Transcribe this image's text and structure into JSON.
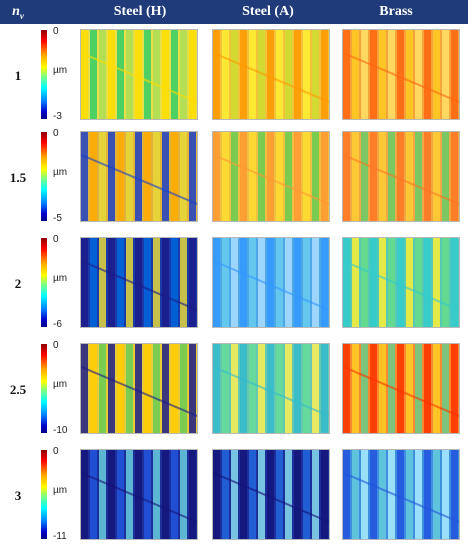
{
  "header": {
    "nv_symbol": "n",
    "nv_sub": "v",
    "columns": [
      "Steel (H)",
      "Steel (A)",
      "Brass"
    ]
  },
  "colors": {
    "header_bg": "#1f3b79",
    "header_text": "#ffffff"
  },
  "rows": [
    {
      "label": "1",
      "scale_top": "0",
      "scale_unit": "µm",
      "scale_bottom": "-3"
    },
    {
      "label": "1.5",
      "scale_top": "0",
      "scale_unit": "µm",
      "scale_bottom": "-5"
    },
    {
      "label": "2",
      "scale_top": "0",
      "scale_unit": "µm",
      "scale_bottom": "-6"
    },
    {
      "label": "2.5",
      "scale_top": "0",
      "scale_unit": "µm",
      "scale_bottom": "-10"
    },
    {
      "label": "3",
      "scale_top": "0",
      "scale_unit": "µm",
      "scale_bottom": "-11"
    }
  ],
  "panels": [
    [
      {
        "stripe": [
          "#ffdd00",
          "#33cc66",
          "#aadd55"
        ],
        "bg": "#e8e04a"
      },
      {
        "stripe": [
          "#ff9900",
          "#ffee33",
          "#ccdd33"
        ],
        "bg": "#f2c23a"
      },
      {
        "stripe": [
          "#ff6611",
          "#ffcc22",
          "#ffe266"
        ],
        "bg": "#f7a23a"
      }
    ],
    [
      {
        "stripe": [
          "#1a3fc8",
          "#ffaa00",
          "#e6d83a"
        ],
        "bg": "#e0b43a"
      },
      {
        "stripe": [
          "#ff9933",
          "#ffdd33",
          "#66cc55"
        ],
        "bg": "#f0c040"
      },
      {
        "stripe": [
          "#ff7722",
          "#ffcc33",
          "#66cc66"
        ],
        "bg": "#f0a845"
      }
    ],
    [
      {
        "stripe": [
          "#1c1c8a",
          "#0066dd",
          "#e6d83a"
        ],
        "bg": "#1a3aa8"
      },
      {
        "stripe": [
          "#3399ff",
          "#66ccee",
          "#aaddff"
        ],
        "bg": "#4fa8e6"
      },
      {
        "stripe": [
          "#33cccc",
          "#ffee33",
          "#66dd88"
        ],
        "bg": "#55c8b8"
      }
    ],
    [
      {
        "stripe": [
          "#1c1c8a",
          "#ffcc00",
          "#66cc55"
        ],
        "bg": "#e8cc3a"
      },
      {
        "stripe": [
          "#33bbcc",
          "#66dd99",
          "#ffee55"
        ],
        "bg": "#66c8b0"
      },
      {
        "stripe": [
          "#ff3300",
          "#ffcc22",
          "#66cc88"
        ],
        "bg": "#f58a30"
      }
    ],
    [
      {
        "stripe": [
          "#14147a",
          "#2255dd",
          "#66ccdd"
        ],
        "bg": "#1c2f9a"
      },
      {
        "stripe": [
          "#14147a",
          "#2266dd",
          "#88ddee"
        ],
        "bg": "#1c2f9a"
      },
      {
        "stripe": [
          "#2255dd",
          "#66ccdd",
          "#aaeeff"
        ],
        "bg": "#3f8fe0"
      }
    ]
  ]
}
